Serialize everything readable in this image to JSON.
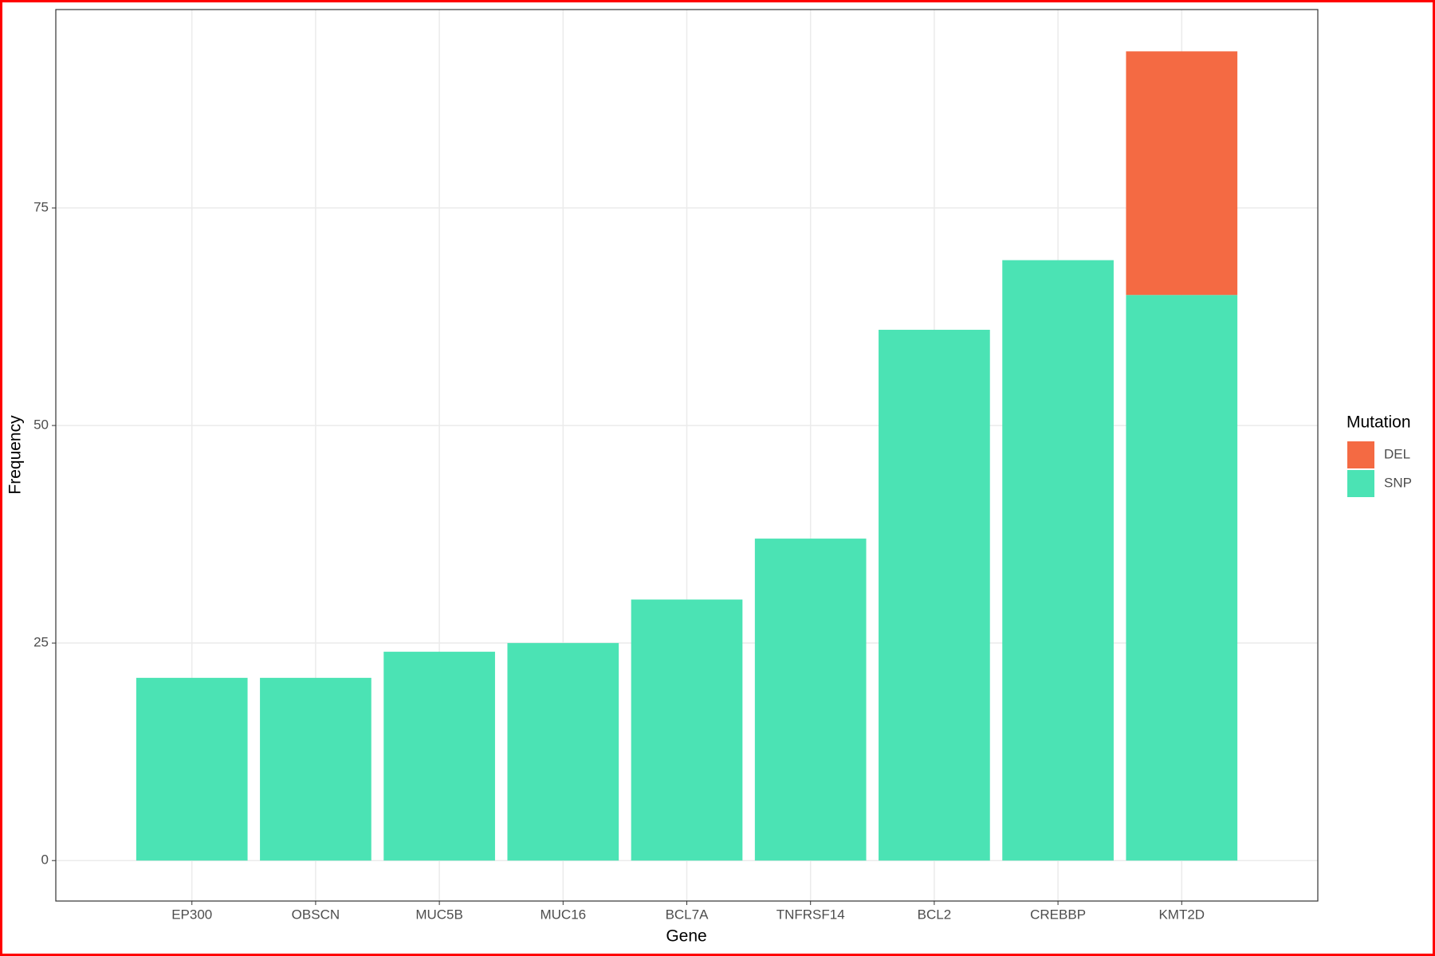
{
  "chart_data": {
    "type": "stacked_bar",
    "x_label": "Gene",
    "y_label": "Frequency",
    "categories": [
      "EP300",
      "OBSCN",
      "MUC5B",
      "MUC16",
      "BCL7A",
      "TNFRSF14",
      "BCL2",
      "CREBBP",
      "KMT2D"
    ],
    "series": [
      {
        "name": "SNP",
        "color": "#4BE3B4",
        "values": [
          21,
          21,
          24,
          25,
          30,
          37,
          61,
          69,
          65
        ]
      },
      {
        "name": "DEL",
        "color": "#F46A43",
        "values": [
          null,
          null,
          null,
          null,
          null,
          null,
          null,
          null,
          28
        ]
      }
    ],
    "legend_title": "Mutation",
    "legend_order": [
      "DEL",
      "SNP"
    ],
    "legend_position": "right",
    "ylim": [
      -4.65,
      97.8
    ],
    "yticks": [
      0,
      25,
      50,
      75
    ],
    "grid": true
  }
}
